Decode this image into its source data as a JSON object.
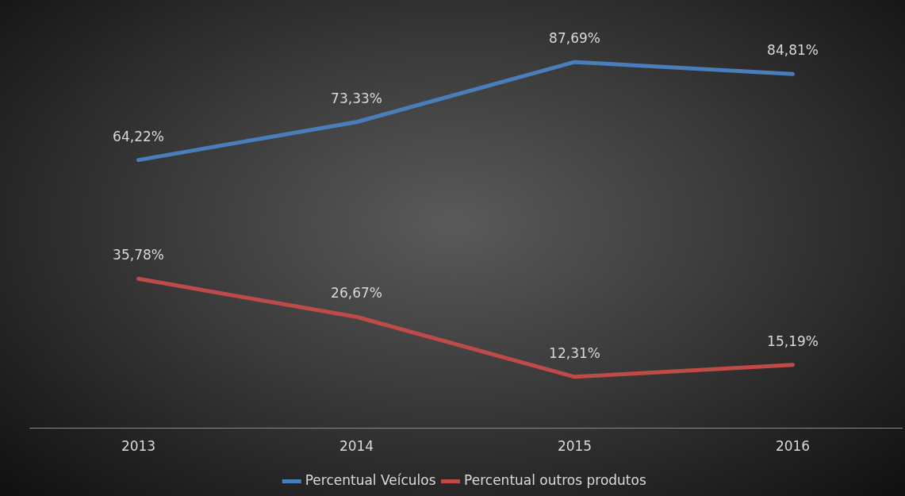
{
  "chart_data": {
    "type": "line",
    "categories": [
      "2013",
      "2014",
      "2015",
      "2016"
    ],
    "series": [
      {
        "name": "Percentual Veículos",
        "color": "#4a7ebb",
        "values": [
          64.22,
          73.33,
          87.69,
          84.81
        ],
        "value_labels": [
          "64,22%",
          "73,33%",
          "87,69%",
          "84,81%"
        ]
      },
      {
        "name": "Percentual outros produtos",
        "color": "#be4b48",
        "values": [
          35.78,
          26.67,
          12.31,
          15.19
        ],
        "value_labels": [
          "35,78%",
          "26,67%",
          "12,31%",
          "15,19%"
        ]
      }
    ],
    "tick_labels": "x",
    "grid": false,
    "legend": "bottom",
    "marker": "none",
    "line_style": "solid"
  }
}
